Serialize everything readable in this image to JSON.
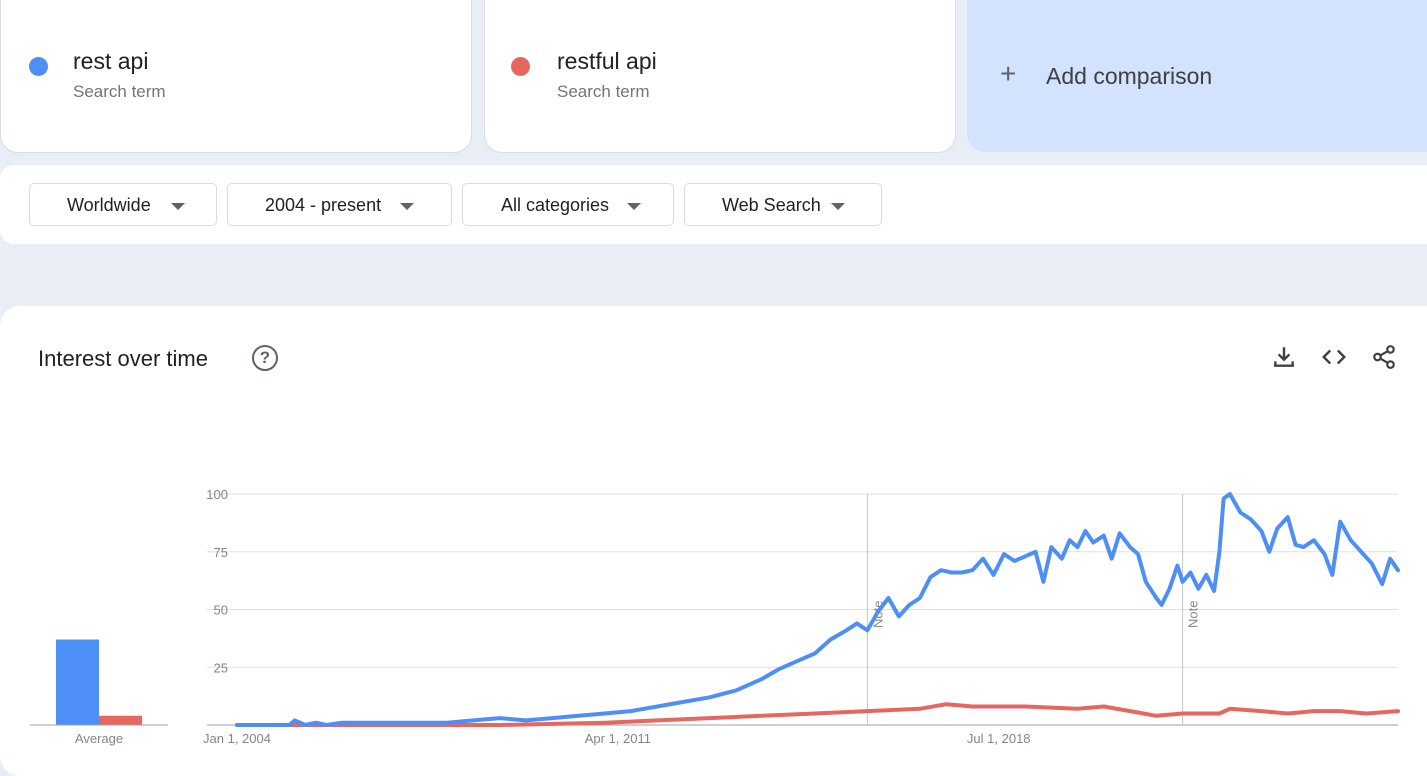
{
  "terms": [
    {
      "name": "rest api",
      "type": "Search term",
      "color": "#4e8ef7"
    },
    {
      "name": "restful api",
      "type": "Search term",
      "color": "#e66760"
    }
  ],
  "add_comparison": {
    "icon": "+",
    "label": "Add comparison"
  },
  "filters": [
    {
      "label": "Worldwide"
    },
    {
      "label": "2004 - present"
    },
    {
      "label": "All categories"
    },
    {
      "label": "Web Search"
    }
  ],
  "panel": {
    "title": "Interest over time",
    "help_icon": "?",
    "actions": [
      "download-icon",
      "embed-code-icon",
      "share-icon"
    ]
  },
  "chart_data": {
    "type": "line",
    "y_ticks": [
      "100",
      "75",
      "50",
      "25"
    ],
    "ylim": [
      0,
      100
    ],
    "x_ticks": [
      "Jan 1, 2004",
      "Apr 1, 2011",
      "Jul 1, 2018"
    ],
    "notes": [
      {
        "x": 2016.0,
        "label": "Note"
      },
      {
        "x": 2022.0,
        "label": "Note"
      }
    ],
    "average_label": "Average",
    "averages": [
      {
        "series": "rest api",
        "value": 37
      },
      {
        "series": "restful api",
        "value": 4
      }
    ],
    "series": [
      {
        "name": "rest api",
        "color": "#4e8ef7",
        "points": [
          [
            2004.0,
            0
          ],
          [
            2005.0,
            0
          ],
          [
            2005.1,
            2
          ],
          [
            2005.3,
            0
          ],
          [
            2005.5,
            1
          ],
          [
            2005.7,
            0
          ],
          [
            2006.0,
            1
          ],
          [
            2007.0,
            1
          ],
          [
            2008.0,
            1
          ],
          [
            2008.5,
            2
          ],
          [
            2009.0,
            3
          ],
          [
            2009.5,
            2
          ],
          [
            2010.0,
            3
          ],
          [
            2010.5,
            4
          ],
          [
            2011.0,
            5
          ],
          [
            2011.5,
            6
          ],
          [
            2012.0,
            8
          ],
          [
            2012.5,
            10
          ],
          [
            2013.0,
            12
          ],
          [
            2013.5,
            15
          ],
          [
            2014.0,
            20
          ],
          [
            2014.3,
            24
          ],
          [
            2014.6,
            27
          ],
          [
            2015.0,
            31
          ],
          [
            2015.3,
            37
          ],
          [
            2015.6,
            41
          ],
          [
            2015.8,
            44
          ],
          [
            2016.0,
            41
          ],
          [
            2016.2,
            49
          ],
          [
            2016.4,
            55
          ],
          [
            2016.6,
            47
          ],
          [
            2016.8,
            52
          ],
          [
            2017.0,
            55
          ],
          [
            2017.2,
            64
          ],
          [
            2017.4,
            67
          ],
          [
            2017.6,
            66
          ],
          [
            2017.8,
            66
          ],
          [
            2018.0,
            67
          ],
          [
            2018.2,
            72
          ],
          [
            2018.4,
            65
          ],
          [
            2018.6,
            74
          ],
          [
            2018.8,
            71
          ],
          [
            2019.0,
            73
          ],
          [
            2019.2,
            75
          ],
          [
            2019.35,
            62
          ],
          [
            2019.5,
            77
          ],
          [
            2019.7,
            72
          ],
          [
            2019.85,
            80
          ],
          [
            2020.0,
            77
          ],
          [
            2020.15,
            84
          ],
          [
            2020.3,
            79
          ],
          [
            2020.5,
            82
          ],
          [
            2020.65,
            72
          ],
          [
            2020.8,
            83
          ],
          [
            2021.0,
            77
          ],
          [
            2021.15,
            74
          ],
          [
            2021.3,
            62
          ],
          [
            2021.5,
            55
          ],
          [
            2021.6,
            52
          ],
          [
            2021.75,
            59
          ],
          [
            2021.9,
            69
          ],
          [
            2022.0,
            62
          ],
          [
            2022.15,
            66
          ],
          [
            2022.3,
            59
          ],
          [
            2022.45,
            65
          ],
          [
            2022.6,
            58
          ],
          [
            2022.7,
            75
          ],
          [
            2022.78,
            98
          ],
          [
            2022.9,
            100
          ],
          [
            2023.1,
            92
          ],
          [
            2023.3,
            89
          ],
          [
            2023.5,
            84
          ],
          [
            2023.65,
            75
          ],
          [
            2023.8,
            85
          ],
          [
            2024.0,
            90
          ],
          [
            2024.15,
            78
          ],
          [
            2024.3,
            77
          ],
          [
            2024.5,
            80
          ],
          [
            2024.7,
            74
          ],
          [
            2024.85,
            65
          ],
          [
            2025.0,
            88
          ],
          [
            2025.2,
            80
          ],
          [
            2025.4,
            75
          ],
          [
            2025.6,
            70
          ],
          [
            2025.8,
            61
          ],
          [
            2025.95,
            72
          ],
          [
            2026.1,
            67
          ]
        ]
      },
      {
        "name": "restful api",
        "color": "#e66760",
        "points": [
          [
            2004.0,
            0
          ],
          [
            2009.0,
            0
          ],
          [
            2011.0,
            1
          ],
          [
            2012.0,
            2
          ],
          [
            2013.0,
            3
          ],
          [
            2014.0,
            4
          ],
          [
            2015.0,
            5
          ],
          [
            2016.0,
            6
          ],
          [
            2017.0,
            7
          ],
          [
            2017.5,
            9
          ],
          [
            2018.0,
            8
          ],
          [
            2019.0,
            8
          ],
          [
            2020.0,
            7
          ],
          [
            2020.5,
            8
          ],
          [
            2021.0,
            6
          ],
          [
            2021.5,
            4
          ],
          [
            2022.0,
            5
          ],
          [
            2022.7,
            5
          ],
          [
            2022.9,
            7
          ],
          [
            2023.5,
            6
          ],
          [
            2024.0,
            5
          ],
          [
            2024.5,
            6
          ],
          [
            2025.0,
            6
          ],
          [
            2025.5,
            5
          ],
          [
            2026.1,
            6
          ]
        ]
      }
    ]
  }
}
